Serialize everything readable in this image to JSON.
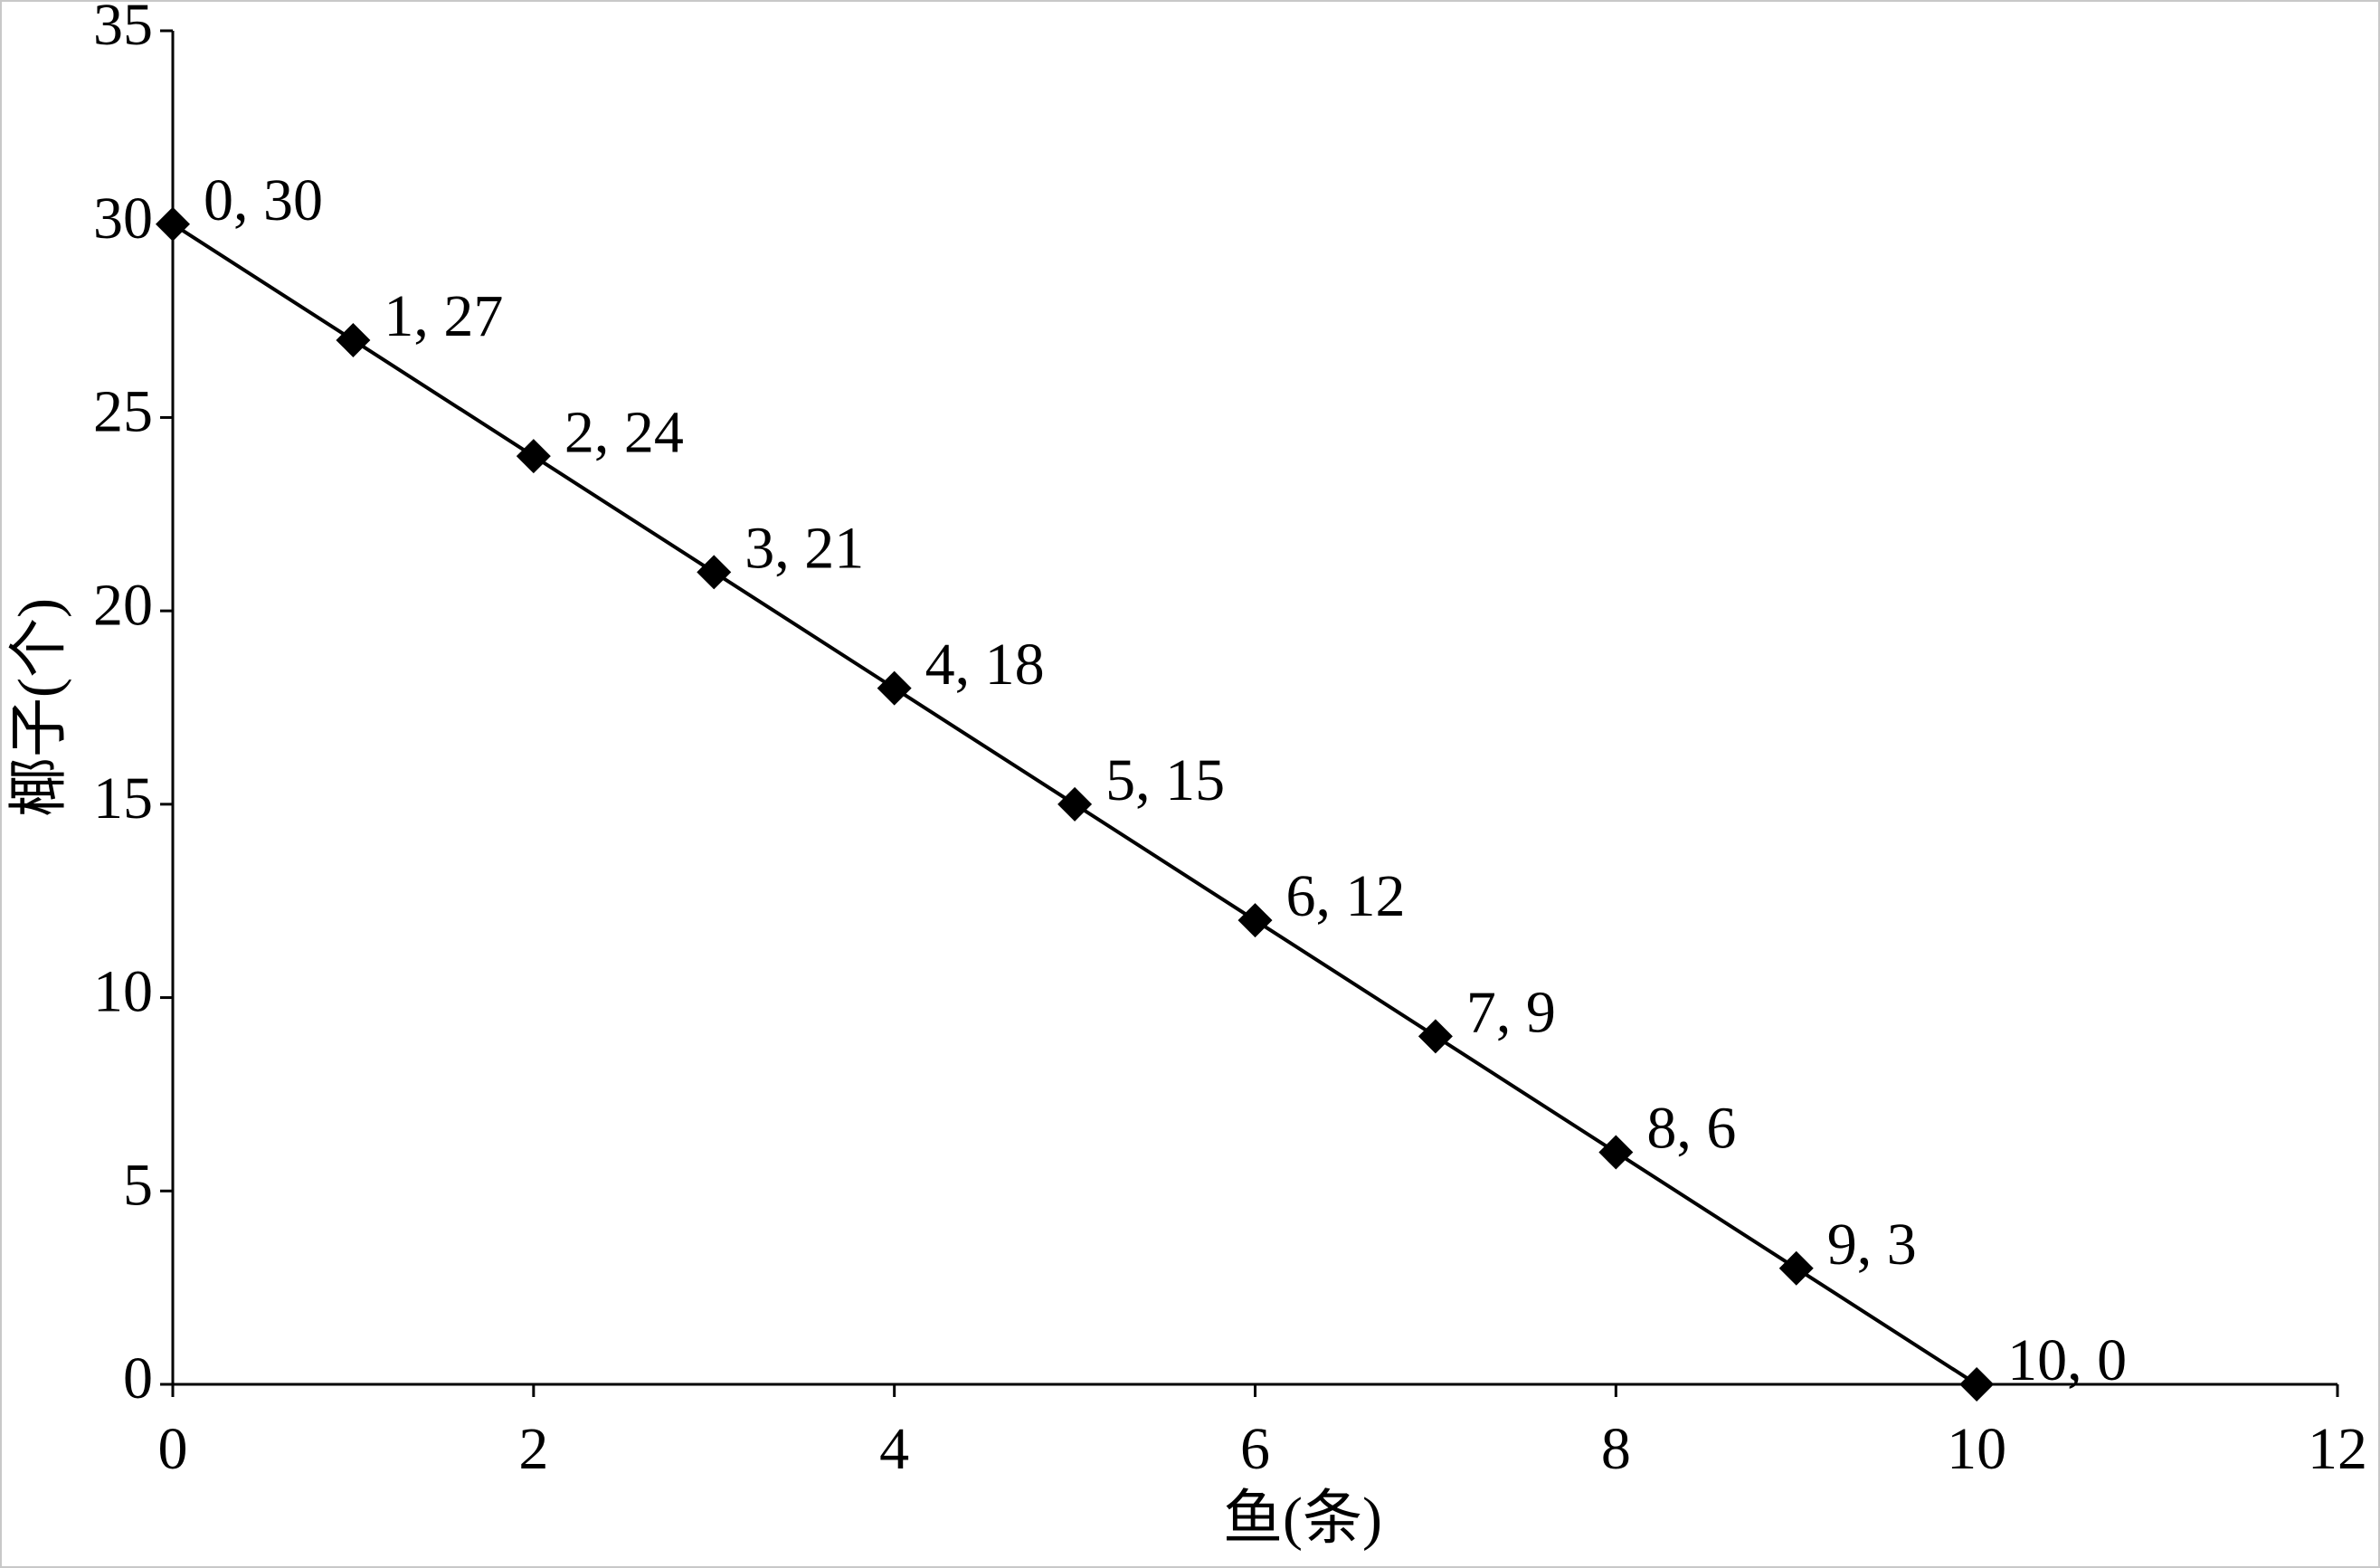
{
  "chart_data": {
    "type": "line",
    "x_label": "鱼(条)",
    "y_label": "椰子(个)",
    "x": [
      0,
      1,
      2,
      3,
      4,
      5,
      6,
      7,
      8,
      9,
      10
    ],
    "values": [
      30,
      27,
      24,
      21,
      18,
      15,
      12,
      9,
      6,
      3,
      0
    ],
    "value_labels": [
      "0, 30",
      "1, 27",
      "2, 24",
      "3, 21",
      "4, 18",
      "5, 15",
      "6, 12",
      "7, 9",
      "8, 6",
      "9, 3",
      "10, 0"
    ],
    "color": "#000000",
    "marker": "diamond",
    "xlim": [
      0,
      12
    ],
    "xticks": [
      0,
      2,
      4,
      6,
      8,
      10,
      12
    ],
    "ylim": [
      0,
      35
    ],
    "yticks": [
      0,
      5,
      10,
      15,
      20,
      25,
      30,
      35
    ],
    "grid": false
  }
}
